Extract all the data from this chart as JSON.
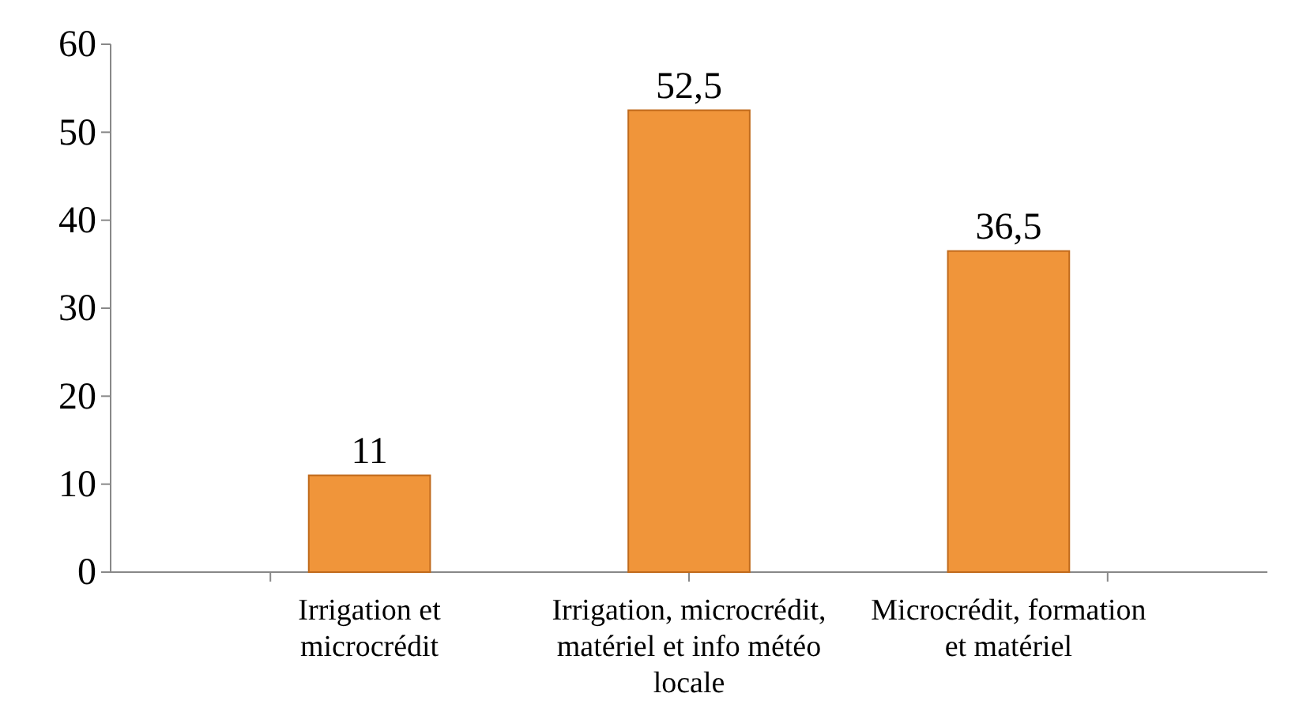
{
  "chart_data": {
    "type": "bar",
    "categories": [
      "Irrigation et microcrédit",
      "Irrigation, microcrédit, matériel et info météo locale",
      "Microcrédit, formation et matériel"
    ],
    "values": [
      11,
      52.5,
      36.5
    ],
    "color": "#f0953a",
    "value_labels": [
      "11",
      "52,5",
      "36,5"
    ],
    "ylim": [
      0,
      60
    ],
    "yticks": [
      0,
      10,
      20,
      30,
      40,
      50,
      60
    ],
    "grid": false
  }
}
